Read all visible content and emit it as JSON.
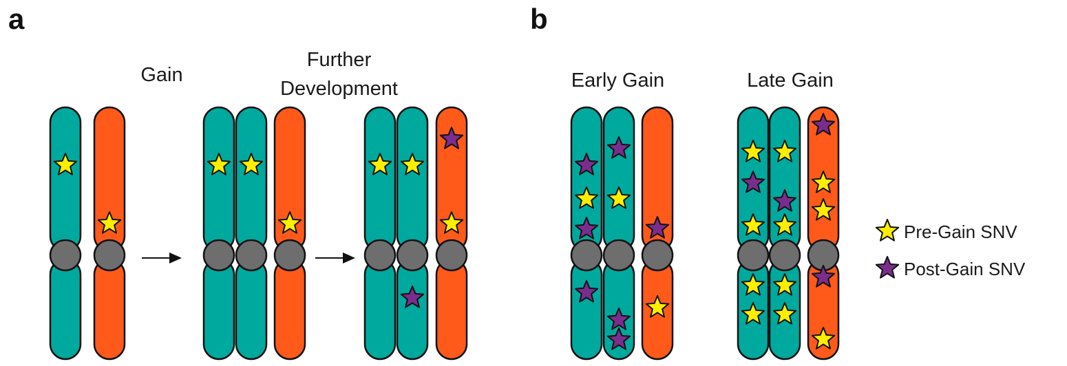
{
  "panel_a": {
    "letter": "a",
    "label_gain": "Gain",
    "label_further_1": "Further",
    "label_further_2": "Development"
  },
  "panel_b": {
    "letter": "b",
    "label_early": "Early Gain",
    "label_late": "Late Gain"
  },
  "legend": {
    "pre": "Pre-Gain SNV",
    "post": "Post-Gain SNV"
  },
  "colors": {
    "teal": "#00a99d",
    "orange": "#ff5a1a",
    "centromere": "#6e6e6e",
    "pre_star": "#ffee00",
    "post_star": "#7b2d8e",
    "outline": "#111111"
  }
}
